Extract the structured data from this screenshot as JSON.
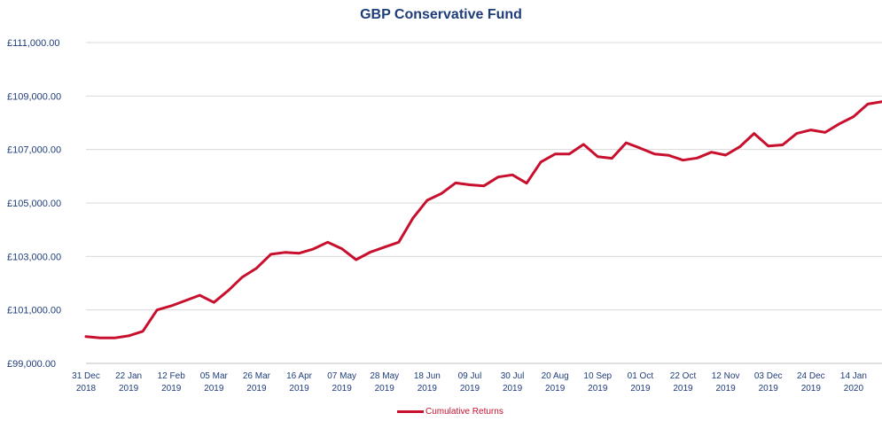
{
  "chart_data": {
    "type": "line",
    "title": "GBP Conservative Fund",
    "xlabel": "",
    "ylabel": "",
    "ylim": [
      99000,
      111000
    ],
    "yticks": [
      99000,
      101000,
      103000,
      105000,
      107000,
      109000,
      111000
    ],
    "ytick_labels": [
      "£99,000.00",
      "£101,000.00",
      "£103,000.00",
      "£105,000.00",
      "£107,000.00",
      "£109,000.00",
      "£111,000.00"
    ],
    "xtick_labels": [
      [
        "31 Dec",
        "2018"
      ],
      [
        "22 Jan",
        "2019"
      ],
      [
        "12 Feb",
        "2019"
      ],
      [
        "05 Mar",
        "2019"
      ],
      [
        "26 Mar",
        "2019"
      ],
      [
        "16 Apr",
        "2019"
      ],
      [
        "07 May",
        "2019"
      ],
      [
        "28 May",
        "2019"
      ],
      [
        "18 Jun",
        "2019"
      ],
      [
        "09 Jul",
        "2019"
      ],
      [
        "30 Jul",
        "2019"
      ],
      [
        "20 Aug",
        "2019"
      ],
      [
        "10 Sep",
        "2019"
      ],
      [
        "01 Oct",
        "2019"
      ],
      [
        "22 Oct",
        "2019"
      ],
      [
        "12 Nov",
        "2019"
      ],
      [
        "03 Dec",
        "2019"
      ],
      [
        "24 Dec",
        "2019"
      ],
      [
        "14 Jan",
        "2020"
      ]
    ],
    "grid": true,
    "legend": "bottom",
    "colors": {
      "line": "#c8102e",
      "title": "#1f3d7a",
      "axis_text": "#1f3d7a",
      "grid": "#d9d9d9"
    },
    "series": [
      {
        "name": "Cumulative Returns",
        "x": [
          "2018-12-31",
          "2019-01-07",
          "2019-01-14",
          "2019-01-21",
          "2019-01-28",
          "2019-02-04",
          "2019-02-11",
          "2019-02-18",
          "2019-02-25",
          "2019-03-04",
          "2019-03-11",
          "2019-03-18",
          "2019-03-25",
          "2019-04-01",
          "2019-04-08",
          "2019-04-15",
          "2019-04-22",
          "2019-04-29",
          "2019-05-06",
          "2019-05-13",
          "2019-05-20",
          "2019-05-27",
          "2019-06-03",
          "2019-06-10",
          "2019-06-17",
          "2019-06-24",
          "2019-07-01",
          "2019-07-08",
          "2019-07-15",
          "2019-07-22",
          "2019-07-29",
          "2019-08-05",
          "2019-08-12",
          "2019-08-19",
          "2019-08-26",
          "2019-09-02",
          "2019-09-09",
          "2019-09-16",
          "2019-09-23",
          "2019-09-30",
          "2019-10-07",
          "2019-10-14",
          "2019-10-21",
          "2019-10-28",
          "2019-11-04",
          "2019-11-11",
          "2019-11-18",
          "2019-11-25",
          "2019-12-02",
          "2019-12-09",
          "2019-12-16",
          "2019-12-23",
          "2019-12-30",
          "2020-01-06",
          "2020-01-13",
          "2020-01-20",
          "2020-01-27"
        ],
        "values": [
          100000,
          99950,
          99950,
          100030,
          100200,
          101000,
          101150,
          101350,
          101550,
          101280,
          101720,
          102230,
          102560,
          103080,
          103150,
          103120,
          103280,
          103530,
          103290,
          102880,
          103160,
          103350,
          103530,
          104430,
          105100,
          105350,
          105750,
          105680,
          105640,
          105970,
          106050,
          105740,
          106530,
          106830,
          106830,
          107190,
          106730,
          106670,
          107250,
          107050,
          106830,
          106780,
          106600,
          106680,
          106900,
          106790,
          107100,
          107600,
          107130,
          107170,
          107600,
          107730,
          107640,
          107960,
          108230,
          108700,
          108790
        ]
      }
    ]
  }
}
